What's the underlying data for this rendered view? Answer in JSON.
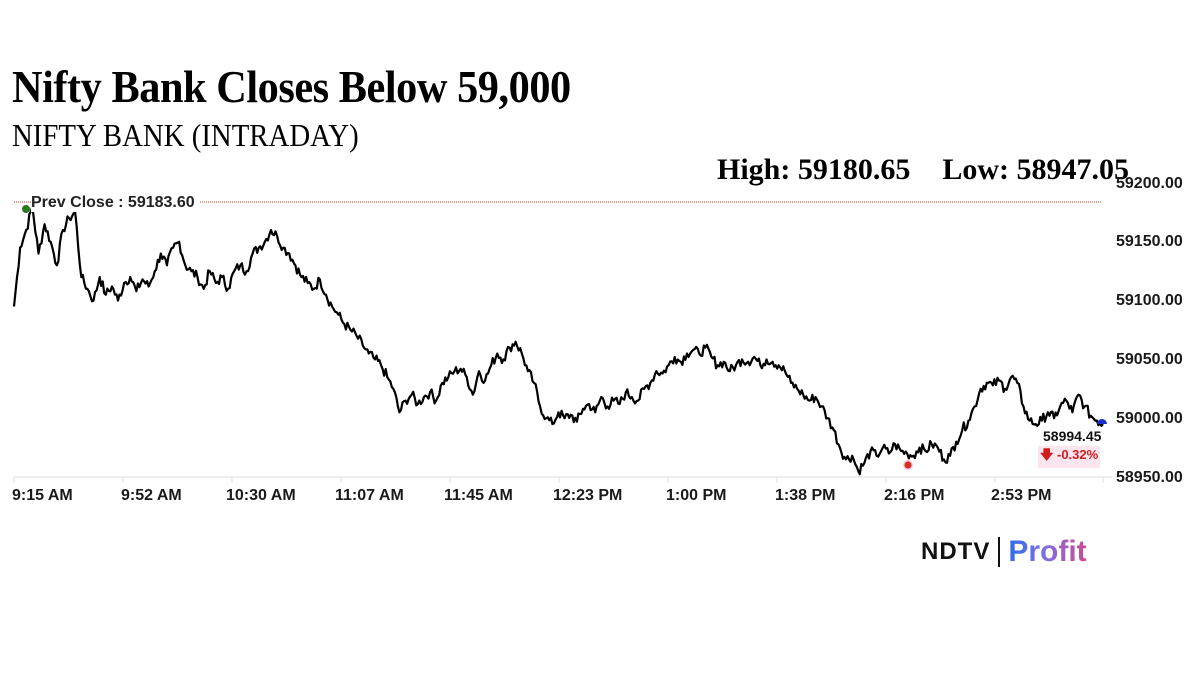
{
  "header": {
    "title": "Nifty Bank Closes Below 59,000",
    "subtitle": "NIFTY BANK (INTRADAY)",
    "high_label": "High: 59180.65",
    "low_label": "Low: 58947.05"
  },
  "annotations": {
    "prev_close_label": "Prev Close : 59183.60",
    "last_price": "58994.45",
    "change_arrow": "arrow-down-icon",
    "change_pct": "-0.32%"
  },
  "colors": {
    "line": "#000000",
    "prev_close_line": "#b5432a",
    "high_marker": "#2d7a1e",
    "low_marker": "#d4301c",
    "last_marker": "#1a2fc9",
    "negative": "#d01c1c",
    "grid": "#d9d9d9"
  },
  "branding": {
    "ndtv": "NDTV",
    "profit": "Profit"
  },
  "chart_data": {
    "type": "line",
    "title": "NIFTY BANK (INTRADAY)",
    "xlabel": "",
    "ylabel": "",
    "ylim": [
      58950,
      59200
    ],
    "grid": false,
    "legend": null,
    "y_ticks": [
      "59200.00",
      "59150.00",
      "59100.00",
      "59050.00",
      "59000.00",
      "58950.00"
    ],
    "x_ticks": [
      "9:15 AM",
      "9:52 AM",
      "10:30 AM",
      "11:07 AM",
      "11:45 AM",
      "12:23 PM",
      "1:00 PM",
      "1:38 PM",
      "2:16 PM",
      "2:53 PM"
    ],
    "prev_close": 59183.6,
    "high": 59180.65,
    "low": 58947.05,
    "last": 58994.45,
    "change_pct": -0.32,
    "x": [
      "9:15",
      "9:17",
      "9:19",
      "9:21",
      "9:23",
      "9:25",
      "9:27",
      "9:29",
      "9:31",
      "9:33",
      "9:35",
      "9:37",
      "9:39",
      "9:41",
      "9:43",
      "9:45",
      "9:47",
      "9:49",
      "9:51",
      "9:53",
      "9:55",
      "9:57",
      "9:59",
      "10:01",
      "10:03",
      "10:05",
      "10:07",
      "10:09",
      "10:11",
      "10:13",
      "10:15",
      "10:17",
      "10:19",
      "10:21",
      "10:23",
      "10:25",
      "10:27",
      "10:29",
      "10:31",
      "10:33",
      "10:35",
      "10:37",
      "10:39",
      "10:41",
      "10:43",
      "10:45",
      "10:47",
      "10:49",
      "10:51",
      "10:53",
      "10:55",
      "10:57",
      "10:59",
      "11:01",
      "11:03",
      "11:05",
      "11:07",
      "11:09",
      "11:11",
      "11:13",
      "11:15",
      "11:17",
      "11:19",
      "11:21",
      "11:23",
      "11:25",
      "11:27",
      "11:29",
      "11:31",
      "11:33",
      "11:35",
      "11:37",
      "11:39",
      "11:41",
      "11:43",
      "11:45",
      "11:47",
      "11:49",
      "11:51",
      "11:53",
      "11:55",
      "11:57",
      "11:59",
      "12:01",
      "12:03",
      "12:05",
      "12:07",
      "12:09",
      "12:11",
      "12:13",
      "12:15",
      "12:17",
      "12:19",
      "12:21",
      "12:23",
      "12:25",
      "12:27",
      "12:29",
      "12:31",
      "12:33",
      "12:35",
      "12:37",
      "12:39",
      "12:41",
      "12:43",
      "12:45",
      "12:47",
      "12:49",
      "12:51",
      "12:53",
      "12:55",
      "12:57",
      "12:59",
      "13:01",
      "13:03",
      "13:05",
      "13:07",
      "13:09",
      "13:11",
      "13:13",
      "13:15",
      "13:17",
      "13:19",
      "13:21",
      "13:23",
      "13:25",
      "13:27",
      "13:29",
      "13:31",
      "13:33",
      "13:35",
      "13:37",
      "13:39",
      "13:41",
      "13:43",
      "13:45",
      "13:47",
      "13:49",
      "13:51",
      "13:53",
      "13:55",
      "13:57",
      "13:59",
      "14:01",
      "14:03",
      "14:05",
      "14:07",
      "14:09",
      "14:11",
      "14:13",
      "14:15",
      "14:17",
      "14:19",
      "14:21",
      "14:23",
      "14:25",
      "14:27",
      "14:29",
      "14:31",
      "14:33",
      "14:35",
      "14:37",
      "14:39",
      "14:41",
      "14:43",
      "14:45",
      "14:47",
      "14:49",
      "14:51",
      "14:53",
      "14:55",
      "14:57",
      "14:59",
      "15:01",
      "15:03",
      "15:05",
      "15:07",
      "15:09",
      "15:11",
      "15:13",
      "15:15",
      "15:17",
      "15:19",
      "15:21",
      "15:23",
      "15:25",
      "15:27",
      "15:29"
    ],
    "series": [
      {
        "name": "NIFTY BANK",
        "values": [
          59095,
          59145,
          59160,
          59180,
          59140,
          59165,
          59150,
          59130,
          59160,
          59170,
          59175,
          59120,
          59110,
          59100,
          59120,
          59105,
          59112,
          59100,
          59115,
          59120,
          59108,
          59118,
          59112,
          59125,
          59140,
          59130,
          59145,
          59150,
          59130,
          59125,
          59120,
          59110,
          59125,
          59115,
          59120,
          59110,
          59125,
          59130,
          59125,
          59140,
          59145,
          59150,
          59160,
          59155,
          59145,
          59140,
          59130,
          59120,
          59115,
          59110,
          59118,
          59105,
          59095,
          59088,
          59080,
          59075,
          59070,
          59062,
          59055,
          59050,
          59045,
          59035,
          59025,
          59005,
          59015,
          59020,
          59012,
          59018,
          59022,
          59015,
          59030,
          59035,
          59040,
          59042,
          59035,
          59020,
          59040,
          59032,
          59045,
          59055,
          59050,
          59060,
          59065,
          59055,
          59040,
          59030,
          59010,
          59000,
          58995,
          59005,
          59000,
          59003,
          58997,
          59008,
          59012,
          59005,
          59018,
          59010,
          59015,
          59012,
          59022,
          59018,
          59015,
          59025,
          59030,
          59040,
          59038,
          59045,
          59052,
          59048,
          59055,
          59058,
          59055,
          59060,
          59052,
          59045,
          59048,
          59040,
          59045,
          59050,
          59048,
          59052,
          59045,
          59050,
          59048,
          59045,
          59040,
          59030,
          59025,
          59020,
          59015,
          59018,
          59010,
          59000,
          58990,
          58975,
          58965,
          58968,
          58955,
          58962,
          58972,
          58968,
          58975,
          58970,
          58978,
          58972,
          58970,
          58968,
          58975,
          58972,
          58978,
          58975,
          58965,
          58968,
          58980,
          58990,
          58998,
          59010,
          59025,
          59030,
          59028,
          59032,
          59025,
          59035,
          59030,
          59010,
          58998,
          58995,
          58998,
          59005,
          59000,
          59010,
          59015,
          59005,
          59020,
          59010,
          59002,
          58998,
          58995
        ]
      }
    ]
  }
}
